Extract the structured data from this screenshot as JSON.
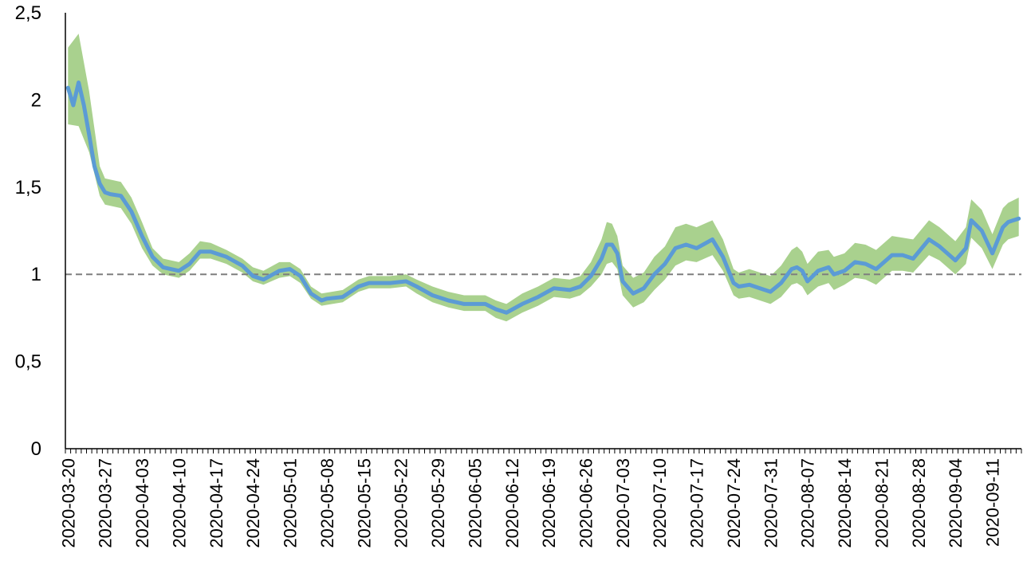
{
  "chart_data": {
    "type": "line",
    "title": "",
    "xlabel": "",
    "ylabel": "",
    "ylim": [
      0,
      2.5
    ],
    "x_start": "2020-03-20",
    "x_end": "2020-09-16",
    "yticks": [
      "0",
      "0,5",
      "1",
      "1,5",
      "2",
      "2,5"
    ],
    "xticks": [
      "2020-03-20",
      "2020-03-27",
      "2020-04-03",
      "2020-04-10",
      "2020-04-17",
      "2020-04-24",
      "2020-05-01",
      "2020-05-08",
      "2020-05-15",
      "2020-05-22",
      "2020-05-29",
      "2020-06-05",
      "2020-06-12",
      "2020-06-19",
      "2020-06-26",
      "2020-07-03",
      "2020-07-10",
      "2020-07-17",
      "2020-07-24",
      "2020-07-31",
      "2020-08-07",
      "2020-08-14",
      "2020-08-21",
      "2020-08-28",
      "2020-09-04",
      "2020-09-11"
    ],
    "reference_line": {
      "y": 1,
      "style": "dashed",
      "color": "#7f7f7f"
    },
    "colors": {
      "line": "#5b9bd5",
      "band": "#a9d18e"
    },
    "series": [
      {
        "role": "estimate",
        "points": [
          [
            "2020-03-20",
            2.07
          ],
          [
            "2020-03-21",
            1.97
          ],
          [
            "2020-03-22",
            2.1
          ],
          [
            "2020-03-23",
            1.97
          ],
          [
            "2020-03-24",
            1.8
          ],
          [
            "2020-03-25",
            1.62
          ],
          [
            "2020-03-26",
            1.52
          ],
          [
            "2020-03-27",
            1.47
          ],
          [
            "2020-03-28",
            1.46
          ],
          [
            "2020-03-30",
            1.45
          ],
          [
            "2020-04-01",
            1.36
          ],
          [
            "2020-04-03",
            1.22
          ],
          [
            "2020-04-05",
            1.1
          ],
          [
            "2020-04-07",
            1.04
          ],
          [
            "2020-04-10",
            1.02
          ],
          [
            "2020-04-12",
            1.06
          ],
          [
            "2020-04-14",
            1.13
          ],
          [
            "2020-04-16",
            1.13
          ],
          [
            "2020-04-19",
            1.1
          ],
          [
            "2020-04-22",
            1.05
          ],
          [
            "2020-04-24",
            0.99
          ],
          [
            "2020-04-26",
            0.97
          ],
          [
            "2020-04-29",
            1.02
          ],
          [
            "2020-05-01",
            1.03
          ],
          [
            "2020-05-03",
            0.99
          ],
          [
            "2020-05-05",
            0.89
          ],
          [
            "2020-05-07",
            0.85
          ],
          [
            "2020-05-08",
            0.86
          ],
          [
            "2020-05-11",
            0.87
          ],
          [
            "2020-05-14",
            0.93
          ],
          [
            "2020-05-16",
            0.95
          ],
          [
            "2020-05-20",
            0.95
          ],
          [
            "2020-05-23",
            0.96
          ],
          [
            "2020-05-25",
            0.93
          ],
          [
            "2020-05-28",
            0.88
          ],
          [
            "2020-05-31",
            0.85
          ],
          [
            "2020-06-03",
            0.83
          ],
          [
            "2020-06-07",
            0.83
          ],
          [
            "2020-06-09",
            0.8
          ],
          [
            "2020-06-11",
            0.78
          ],
          [
            "2020-06-14",
            0.83
          ],
          [
            "2020-06-17",
            0.87
          ],
          [
            "2020-06-20",
            0.92
          ],
          [
            "2020-06-23",
            0.91
          ],
          [
            "2020-06-25",
            0.93
          ],
          [
            "2020-06-27",
            0.99
          ],
          [
            "2020-06-29",
            1.09
          ],
          [
            "2020-06-30",
            1.17
          ],
          [
            "2020-07-01",
            1.17
          ],
          [
            "2020-07-02",
            1.12
          ],
          [
            "2020-07-03",
            0.96
          ],
          [
            "2020-07-05",
            0.89
          ],
          [
            "2020-07-07",
            0.92
          ],
          [
            "2020-07-09",
            1.0
          ],
          [
            "2020-07-11",
            1.06
          ],
          [
            "2020-07-13",
            1.15
          ],
          [
            "2020-07-15",
            1.17
          ],
          [
            "2020-07-17",
            1.15
          ],
          [
            "2020-07-20",
            1.2
          ],
          [
            "2020-07-22",
            1.1
          ],
          [
            "2020-07-24",
            0.95
          ],
          [
            "2020-07-25",
            0.93
          ],
          [
            "2020-07-27",
            0.94
          ],
          [
            "2020-07-29",
            0.92
          ],
          [
            "2020-07-31",
            0.9
          ],
          [
            "2020-08-02",
            0.95
          ],
          [
            "2020-08-04",
            1.03
          ],
          [
            "2020-08-05",
            1.04
          ],
          [
            "2020-08-06",
            1.02
          ],
          [
            "2020-08-07",
            0.96
          ],
          [
            "2020-08-09",
            1.02
          ],
          [
            "2020-08-11",
            1.04
          ],
          [
            "2020-08-12",
            1.0
          ],
          [
            "2020-08-14",
            1.02
          ],
          [
            "2020-08-16",
            1.07
          ],
          [
            "2020-08-18",
            1.06
          ],
          [
            "2020-08-20",
            1.03
          ],
          [
            "2020-08-23",
            1.11
          ],
          [
            "2020-08-25",
            1.11
          ],
          [
            "2020-08-27",
            1.09
          ],
          [
            "2020-08-30",
            1.2
          ],
          [
            "2020-09-01",
            1.16
          ],
          [
            "2020-09-04",
            1.08
          ],
          [
            "2020-09-06",
            1.15
          ],
          [
            "2020-09-07",
            1.31
          ],
          [
            "2020-09-09",
            1.25
          ],
          [
            "2020-09-11",
            1.12
          ],
          [
            "2020-09-13",
            1.27
          ],
          [
            "2020-09-14",
            1.3
          ],
          [
            "2020-09-16",
            1.32
          ]
        ]
      },
      {
        "role": "upper_bound",
        "points": [
          [
            "2020-03-20",
            2.3
          ],
          [
            "2020-03-22",
            2.38
          ],
          [
            "2020-03-24",
            2.05
          ],
          [
            "2020-03-26",
            1.62
          ],
          [
            "2020-03-27",
            1.55
          ],
          [
            "2020-03-30",
            1.53
          ],
          [
            "2020-04-01",
            1.44
          ],
          [
            "2020-04-03",
            1.3
          ],
          [
            "2020-04-05",
            1.15
          ],
          [
            "2020-04-07",
            1.09
          ],
          [
            "2020-04-10",
            1.07
          ],
          [
            "2020-04-12",
            1.12
          ],
          [
            "2020-04-14",
            1.19
          ],
          [
            "2020-04-16",
            1.18
          ],
          [
            "2020-04-19",
            1.14
          ],
          [
            "2020-04-22",
            1.09
          ],
          [
            "2020-04-24",
            1.04
          ],
          [
            "2020-04-26",
            1.02
          ],
          [
            "2020-04-29",
            1.07
          ],
          [
            "2020-05-01",
            1.07
          ],
          [
            "2020-05-03",
            1.03
          ],
          [
            "2020-05-05",
            0.93
          ],
          [
            "2020-05-07",
            0.89
          ],
          [
            "2020-05-11",
            0.91
          ],
          [
            "2020-05-14",
            0.97
          ],
          [
            "2020-05-16",
            0.99
          ],
          [
            "2020-05-20",
            0.99
          ],
          [
            "2020-05-23",
            1.0
          ],
          [
            "2020-05-25",
            0.97
          ],
          [
            "2020-05-28",
            0.93
          ],
          [
            "2020-05-31",
            0.9
          ],
          [
            "2020-06-03",
            0.88
          ],
          [
            "2020-06-07",
            0.88
          ],
          [
            "2020-06-09",
            0.85
          ],
          [
            "2020-06-11",
            0.83
          ],
          [
            "2020-06-14",
            0.89
          ],
          [
            "2020-06-17",
            0.93
          ],
          [
            "2020-06-20",
            0.98
          ],
          [
            "2020-06-23",
            0.97
          ],
          [
            "2020-06-25",
            0.99
          ],
          [
            "2020-06-27",
            1.07
          ],
          [
            "2020-06-29",
            1.2
          ],
          [
            "2020-06-30",
            1.3
          ],
          [
            "2020-07-01",
            1.29
          ],
          [
            "2020-07-02",
            1.22
          ],
          [
            "2020-07-03",
            1.05
          ],
          [
            "2020-07-05",
            0.98
          ],
          [
            "2020-07-07",
            1.01
          ],
          [
            "2020-07-09",
            1.1
          ],
          [
            "2020-07-11",
            1.16
          ],
          [
            "2020-07-13",
            1.27
          ],
          [
            "2020-07-15",
            1.29
          ],
          [
            "2020-07-17",
            1.27
          ],
          [
            "2020-07-20",
            1.31
          ],
          [
            "2020-07-22",
            1.2
          ],
          [
            "2020-07-24",
            1.03
          ],
          [
            "2020-07-25",
            1.01
          ],
          [
            "2020-07-27",
            1.03
          ],
          [
            "2020-07-29",
            1.01
          ],
          [
            "2020-07-31",
            0.99
          ],
          [
            "2020-08-02",
            1.05
          ],
          [
            "2020-08-04",
            1.14
          ],
          [
            "2020-08-05",
            1.16
          ],
          [
            "2020-08-06",
            1.13
          ],
          [
            "2020-08-07",
            1.06
          ],
          [
            "2020-08-09",
            1.13
          ],
          [
            "2020-08-11",
            1.14
          ],
          [
            "2020-08-12",
            1.1
          ],
          [
            "2020-08-14",
            1.12
          ],
          [
            "2020-08-16",
            1.18
          ],
          [
            "2020-08-18",
            1.17
          ],
          [
            "2020-08-20",
            1.14
          ],
          [
            "2020-08-23",
            1.22
          ],
          [
            "2020-08-25",
            1.21
          ],
          [
            "2020-08-27",
            1.2
          ],
          [
            "2020-08-30",
            1.31
          ],
          [
            "2020-09-01",
            1.27
          ],
          [
            "2020-09-04",
            1.19
          ],
          [
            "2020-09-06",
            1.27
          ],
          [
            "2020-09-07",
            1.43
          ],
          [
            "2020-09-09",
            1.37
          ],
          [
            "2020-09-11",
            1.23
          ],
          [
            "2020-09-13",
            1.38
          ],
          [
            "2020-09-14",
            1.41
          ],
          [
            "2020-09-16",
            1.44
          ]
        ]
      },
      {
        "role": "lower_bound",
        "points": [
          [
            "2020-03-20",
            1.86
          ],
          [
            "2020-03-22",
            1.85
          ],
          [
            "2020-03-24",
            1.7
          ],
          [
            "2020-03-26",
            1.45
          ],
          [
            "2020-03-27",
            1.4
          ],
          [
            "2020-03-30",
            1.38
          ],
          [
            "2020-04-01",
            1.29
          ],
          [
            "2020-04-03",
            1.15
          ],
          [
            "2020-04-05",
            1.05
          ],
          [
            "2020-04-07",
            1.0
          ],
          [
            "2020-04-10",
            0.98
          ],
          [
            "2020-04-12",
            1.02
          ],
          [
            "2020-04-14",
            1.09
          ],
          [
            "2020-04-16",
            1.09
          ],
          [
            "2020-04-19",
            1.06
          ],
          [
            "2020-04-22",
            1.01
          ],
          [
            "2020-04-24",
            0.96
          ],
          [
            "2020-04-26",
            0.94
          ],
          [
            "2020-04-29",
            0.98
          ],
          [
            "2020-05-01",
            0.99
          ],
          [
            "2020-05-03",
            0.95
          ],
          [
            "2020-05-05",
            0.86
          ],
          [
            "2020-05-07",
            0.82
          ],
          [
            "2020-05-11",
            0.84
          ],
          [
            "2020-05-14",
            0.9
          ],
          [
            "2020-05-16",
            0.92
          ],
          [
            "2020-05-20",
            0.92
          ],
          [
            "2020-05-23",
            0.93
          ],
          [
            "2020-05-25",
            0.89
          ],
          [
            "2020-05-28",
            0.84
          ],
          [
            "2020-05-31",
            0.81
          ],
          [
            "2020-06-03",
            0.79
          ],
          [
            "2020-06-07",
            0.79
          ],
          [
            "2020-06-09",
            0.75
          ],
          [
            "2020-06-11",
            0.73
          ],
          [
            "2020-06-14",
            0.78
          ],
          [
            "2020-06-17",
            0.82
          ],
          [
            "2020-06-20",
            0.87
          ],
          [
            "2020-06-23",
            0.86
          ],
          [
            "2020-06-25",
            0.88
          ],
          [
            "2020-06-27",
            0.93
          ],
          [
            "2020-06-29",
            1.0
          ],
          [
            "2020-06-30",
            1.06
          ],
          [
            "2020-07-01",
            1.07
          ],
          [
            "2020-07-02",
            1.03
          ],
          [
            "2020-07-03",
            0.88
          ],
          [
            "2020-07-05",
            0.81
          ],
          [
            "2020-07-07",
            0.84
          ],
          [
            "2020-07-09",
            0.91
          ],
          [
            "2020-07-11",
            0.97
          ],
          [
            "2020-07-13",
            1.05
          ],
          [
            "2020-07-15",
            1.08
          ],
          [
            "2020-07-17",
            1.07
          ],
          [
            "2020-07-20",
            1.11
          ],
          [
            "2020-07-22",
            1.02
          ],
          [
            "2020-07-24",
            0.88
          ],
          [
            "2020-07-25",
            0.86
          ],
          [
            "2020-07-27",
            0.87
          ],
          [
            "2020-07-29",
            0.85
          ],
          [
            "2020-07-31",
            0.83
          ],
          [
            "2020-08-02",
            0.87
          ],
          [
            "2020-08-04",
            0.94
          ],
          [
            "2020-08-05",
            0.95
          ],
          [
            "2020-08-06",
            0.93
          ],
          [
            "2020-08-07",
            0.88
          ],
          [
            "2020-08-09",
            0.93
          ],
          [
            "2020-08-11",
            0.95
          ],
          [
            "2020-08-12",
            0.91
          ],
          [
            "2020-08-14",
            0.94
          ],
          [
            "2020-08-16",
            0.98
          ],
          [
            "2020-08-18",
            0.97
          ],
          [
            "2020-08-20",
            0.94
          ],
          [
            "2020-08-23",
            1.02
          ],
          [
            "2020-08-25",
            1.02
          ],
          [
            "2020-08-27",
            1.01
          ],
          [
            "2020-08-30",
            1.11
          ],
          [
            "2020-09-01",
            1.08
          ],
          [
            "2020-09-04",
            1.0
          ],
          [
            "2020-09-06",
            1.06
          ],
          [
            "2020-09-07",
            1.21
          ],
          [
            "2020-09-09",
            1.15
          ],
          [
            "2020-09-11",
            1.03
          ],
          [
            "2020-09-13",
            1.17
          ],
          [
            "2020-09-14",
            1.2
          ],
          [
            "2020-09-16",
            1.22
          ]
        ]
      }
    ]
  }
}
